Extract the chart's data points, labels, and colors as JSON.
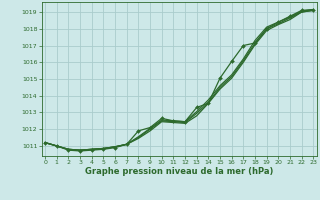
{
  "title": "Graphe pression niveau de la mer (hPa)",
  "bg_color": "#cde8e8",
  "grid_color": "#aacccc",
  "line_color": "#2d6a2d",
  "x_ticks": [
    0,
    1,
    2,
    3,
    4,
    5,
    6,
    7,
    8,
    9,
    10,
    11,
    12,
    13,
    14,
    15,
    16,
    17,
    18,
    19,
    20,
    21,
    22,
    23
  ],
  "y_ticks": [
    1011,
    1012,
    1013,
    1014,
    1015,
    1016,
    1017,
    1018,
    1019
  ],
  "ylim": [
    1010.4,
    1019.6
  ],
  "xlim": [
    -0.3,
    23.3
  ],
  "series_smooth": [
    [
      1011.2,
      1011.0,
      1010.8,
      1010.75,
      1010.8,
      1010.85,
      1010.95,
      1011.1,
      1011.45,
      1011.9,
      1012.45,
      1012.4,
      1012.35,
      1012.8,
      1013.55,
      1014.4,
      1015.05,
      1016.0,
      1017.05,
      1017.9,
      1018.25,
      1018.55,
      1019.0,
      1019.1
    ],
    [
      1011.2,
      1011.0,
      1010.8,
      1010.75,
      1010.8,
      1010.85,
      1010.95,
      1011.1,
      1011.5,
      1012.0,
      1012.5,
      1012.45,
      1012.4,
      1012.95,
      1013.6,
      1014.5,
      1015.15,
      1016.1,
      1017.15,
      1018.0,
      1018.3,
      1018.65,
      1019.0,
      1019.1
    ],
    [
      1011.2,
      1011.0,
      1010.8,
      1010.75,
      1010.8,
      1010.85,
      1010.95,
      1011.1,
      1011.55,
      1012.05,
      1012.55,
      1012.5,
      1012.45,
      1013.05,
      1013.75,
      1014.6,
      1015.25,
      1016.2,
      1017.3,
      1018.1,
      1018.4,
      1018.7,
      1019.05,
      1019.15
    ]
  ],
  "series_marker": [
    [
      1011.2,
      1011.0,
      1010.75,
      1010.7,
      1010.75,
      1010.8,
      1010.9,
      1011.1,
      1011.9,
      1012.1,
      1012.65,
      1012.5,
      1012.45,
      1013.3,
      1013.55,
      1015.05,
      1016.05,
      1017.0,
      1017.15,
      1018.0,
      1018.4,
      1018.75,
      1019.1,
      1019.15
    ]
  ],
  "x_hours": [
    0,
    1,
    2,
    3,
    4,
    5,
    6,
    7,
    8,
    9,
    10,
    11,
    12,
    13,
    14,
    15,
    16,
    17,
    18,
    19,
    20,
    21,
    22,
    23
  ]
}
